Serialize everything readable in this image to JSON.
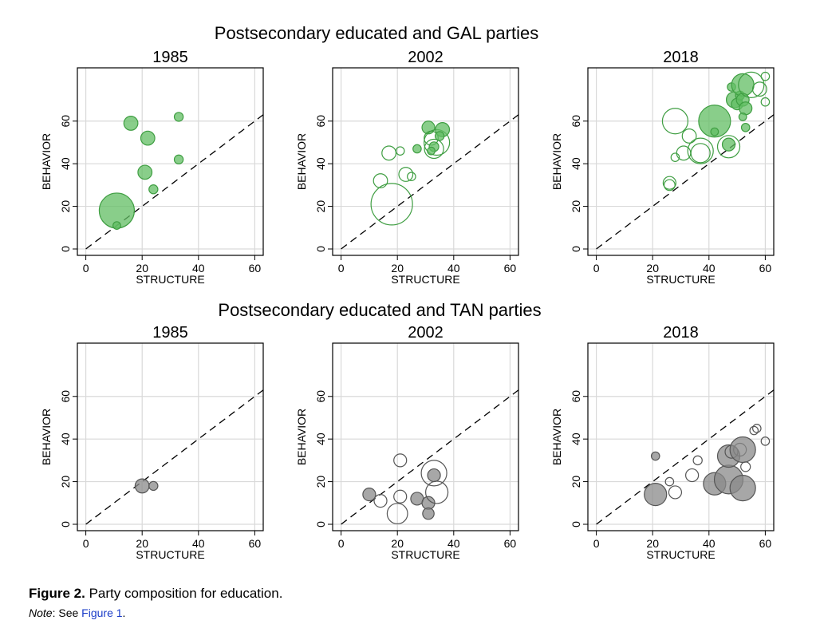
{
  "group_titles": [
    "Postsecondary educated and GAL parties",
    "Postsecondary educated and TAN parties"
  ],
  "colors": {
    "gal_fill": "#62bd63",
    "gal_stroke": "#3f9e42",
    "tan_fill": "#8a8a8a",
    "tan_stroke": "#555555",
    "grid": "#d9d9d9",
    "axis": "#000000",
    "link": "#1a3cc8"
  },
  "chart_data": [
    {
      "type": "scatter",
      "title": "1985",
      "xlabel": "STRUCTURE",
      "ylabel": "BEHAVIOR",
      "xlim": [
        -3,
        63
      ],
      "ylim": [
        -3,
        85
      ],
      "xticks": [
        "0",
        "20",
        "40",
        "60"
      ],
      "yticks": [
        "0",
        "20",
        "40",
        "60"
      ],
      "grid": true,
      "reference_line": "y = x (dashed)",
      "color": "gal",
      "points": [
        {
          "x": 11,
          "y": 18,
          "size": 5.5,
          "filled": true
        },
        {
          "x": 11,
          "y": 11,
          "size": 1.2,
          "filled": true
        },
        {
          "x": 16,
          "y": 59,
          "size": 2.2,
          "filled": true
        },
        {
          "x": 22,
          "y": 52,
          "size": 2.2,
          "filled": true
        },
        {
          "x": 21,
          "y": 36,
          "size": 2.2,
          "filled": true
        },
        {
          "x": 24,
          "y": 28,
          "size": 1.4,
          "filled": true
        },
        {
          "x": 33,
          "y": 62,
          "size": 1.4,
          "filled": true
        },
        {
          "x": 33,
          "y": 42,
          "size": 1.4,
          "filled": true
        }
      ]
    },
    {
      "type": "scatter",
      "title": "2002",
      "xlabel": "STRUCTURE",
      "ylabel": "BEHAVIOR",
      "xlim": [
        -3,
        63
      ],
      "ylim": [
        -3,
        85
      ],
      "xticks": [
        "0",
        "20",
        "40",
        "60"
      ],
      "yticks": [
        "0",
        "20",
        "40",
        "60"
      ],
      "grid": true,
      "reference_line": "y = x (dashed)",
      "color": "gal",
      "points": [
        {
          "x": 18,
          "y": 21,
          "size": 6.5,
          "filled": false
        },
        {
          "x": 17,
          "y": 45,
          "size": 2.2,
          "filled": false
        },
        {
          "x": 21,
          "y": 46,
          "size": 1.3,
          "filled": false
        },
        {
          "x": 14,
          "y": 32,
          "size": 2.2,
          "filled": false
        },
        {
          "x": 23,
          "y": 35,
          "size": 2.2,
          "filled": false
        },
        {
          "x": 25,
          "y": 34,
          "size": 1.3,
          "filled": false
        },
        {
          "x": 27,
          "y": 47,
          "size": 1.3,
          "filled": true
        },
        {
          "x": 31,
          "y": 57,
          "size": 2.0,
          "filled": true
        },
        {
          "x": 32,
          "y": 52,
          "size": 2.2,
          "filled": false
        },
        {
          "x": 33,
          "y": 47,
          "size": 3.0,
          "filled": false
        },
        {
          "x": 33,
          "y": 48,
          "size": 1.5,
          "filled": true
        },
        {
          "x": 34,
          "y": 50,
          "size": 4.0,
          "filled": false
        },
        {
          "x": 36,
          "y": 56,
          "size": 2.2,
          "filled": true
        },
        {
          "x": 35,
          "y": 53,
          "size": 1.4,
          "filled": true
        },
        {
          "x": 32,
          "y": 46,
          "size": 1.2,
          "filled": true
        }
      ]
    },
    {
      "type": "scatter",
      "title": "2018",
      "xlabel": "STRUCTURE",
      "ylabel": "BEHAVIOR",
      "xlim": [
        -3,
        63
      ],
      "ylim": [
        -3,
        85
      ],
      "xticks": [
        "0",
        "20",
        "40",
        "60"
      ],
      "yticks": [
        "0",
        "20",
        "40",
        "60"
      ],
      "grid": true,
      "reference_line": "y = x (dashed)",
      "color": "gal",
      "points": [
        {
          "x": 26,
          "y": 30,
          "size": 1.7,
          "filled": false
        },
        {
          "x": 26,
          "y": 31,
          "size": 2.0,
          "filled": false
        },
        {
          "x": 28,
          "y": 60,
          "size": 4.0,
          "filled": false
        },
        {
          "x": 28,
          "y": 43,
          "size": 1.3,
          "filled": false
        },
        {
          "x": 31,
          "y": 45,
          "size": 2.2,
          "filled": false
        },
        {
          "x": 33,
          "y": 53,
          "size": 2.2,
          "filled": false
        },
        {
          "x": 37,
          "y": 46,
          "size": 4.0,
          "filled": false
        },
        {
          "x": 37,
          "y": 45,
          "size": 3.0,
          "filled": false
        },
        {
          "x": 42,
          "y": 60,
          "size": 5.0,
          "filled": true
        },
        {
          "x": 42,
          "y": 55,
          "size": 1.2,
          "filled": true
        },
        {
          "x": 47,
          "y": 48,
          "size": 3.5,
          "filled": false
        },
        {
          "x": 47,
          "y": 49,
          "size": 2.0,
          "filled": true
        },
        {
          "x": 48,
          "y": 76,
          "size": 1.3,
          "filled": true
        },
        {
          "x": 49,
          "y": 70,
          "size": 2.5,
          "filled": true
        },
        {
          "x": 50,
          "y": 68,
          "size": 1.8,
          "filled": true
        },
        {
          "x": 51,
          "y": 72,
          "size": 1.4,
          "filled": true
        },
        {
          "x": 52,
          "y": 77,
          "size": 3.5,
          "filled": true
        },
        {
          "x": 52,
          "y": 70,
          "size": 2.0,
          "filled": true
        },
        {
          "x": 53,
          "y": 66,
          "size": 2.0,
          "filled": true
        },
        {
          "x": 52,
          "y": 62,
          "size": 1.2,
          "filled": true
        },
        {
          "x": 53,
          "y": 57,
          "size": 1.3,
          "filled": true
        },
        {
          "x": 55,
          "y": 77,
          "size": 4.0,
          "filled": false
        },
        {
          "x": 58,
          "y": 75,
          "size": 2.2,
          "filled": false
        },
        {
          "x": 60,
          "y": 81,
          "size": 1.3,
          "filled": false
        },
        {
          "x": 60,
          "y": 69,
          "size": 1.3,
          "filled": false
        }
      ]
    },
    {
      "type": "scatter",
      "title": "1985",
      "xlabel": "STRUCTURE",
      "ylabel": "BEHAVIOR",
      "xlim": [
        -3,
        63
      ],
      "ylim": [
        -3,
        85
      ],
      "xticks": [
        "0",
        "20",
        "40",
        "60"
      ],
      "yticks": [
        "0",
        "20",
        "40",
        "60"
      ],
      "grid": true,
      "reference_line": "y = x (dashed)",
      "color": "tan",
      "points": [
        {
          "x": 20,
          "y": 18,
          "size": 2.2,
          "filled": true
        },
        {
          "x": 24,
          "y": 18,
          "size": 1.4,
          "filled": true
        }
      ]
    },
    {
      "type": "scatter",
      "title": "2002",
      "xlabel": "STRUCTURE",
      "ylabel": "BEHAVIOR",
      "xlim": [
        -3,
        63
      ],
      "ylim": [
        -3,
        85
      ],
      "xticks": [
        "0",
        "20",
        "40",
        "60"
      ],
      "yticks": [
        "0",
        "20",
        "40",
        "60"
      ],
      "grid": true,
      "reference_line": "y = x (dashed)",
      "color": "tan",
      "points": [
        {
          "x": 10,
          "y": 14,
          "size": 2.0,
          "filled": true
        },
        {
          "x": 14,
          "y": 11,
          "size": 2.0,
          "filled": false
        },
        {
          "x": 21,
          "y": 30,
          "size": 2.0,
          "filled": false
        },
        {
          "x": 21,
          "y": 13,
          "size": 2.0,
          "filled": false
        },
        {
          "x": 20,
          "y": 5,
          "size": 3.2,
          "filled": false
        },
        {
          "x": 27,
          "y": 12,
          "size": 2.0,
          "filled": true
        },
        {
          "x": 31,
          "y": 10,
          "size": 2.0,
          "filled": true
        },
        {
          "x": 31,
          "y": 5,
          "size": 1.8,
          "filled": true
        },
        {
          "x": 33,
          "y": 24,
          "size": 4.0,
          "filled": false
        },
        {
          "x": 33,
          "y": 23,
          "size": 2.0,
          "filled": true
        },
        {
          "x": 34,
          "y": 15,
          "size": 3.5,
          "filled": false
        }
      ]
    },
    {
      "type": "scatter",
      "title": "2018",
      "xlabel": "STRUCTURE",
      "ylabel": "BEHAVIOR",
      "xlim": [
        -3,
        63
      ],
      "ylim": [
        -3,
        85
      ],
      "xticks": [
        "0",
        "20",
        "40",
        "60"
      ],
      "yticks": [
        "0",
        "20",
        "40",
        "60"
      ],
      "grid": true,
      "reference_line": "y = x (dashed)",
      "color": "tan",
      "points": [
        {
          "x": 21,
          "y": 32,
          "size": 1.3,
          "filled": true
        },
        {
          "x": 21,
          "y": 14,
          "size": 3.5,
          "filled": true
        },
        {
          "x": 26,
          "y": 20,
          "size": 1.3,
          "filled": false
        },
        {
          "x": 28,
          "y": 15,
          "size": 2.0,
          "filled": false
        },
        {
          "x": 34,
          "y": 23,
          "size": 2.0,
          "filled": false
        },
        {
          "x": 36,
          "y": 30,
          "size": 1.4,
          "filled": false
        },
        {
          "x": 42,
          "y": 19,
          "size": 3.5,
          "filled": true
        },
        {
          "x": 47,
          "y": 21,
          "size": 4.5,
          "filled": true
        },
        {
          "x": 47,
          "y": 32,
          "size": 3.5,
          "filled": true
        },
        {
          "x": 48,
          "y": 34,
          "size": 2.0,
          "filled": false
        },
        {
          "x": 51,
          "y": 35,
          "size": 2.0,
          "filled": false
        },
        {
          "x": 52,
          "y": 35,
          "size": 4.0,
          "filled": true
        },
        {
          "x": 52,
          "y": 17,
          "size": 4.0,
          "filled": true
        },
        {
          "x": 53,
          "y": 27,
          "size": 1.5,
          "filled": false
        },
        {
          "x": 56,
          "y": 44,
          "size": 1.3,
          "filled": false
        },
        {
          "x": 57,
          "y": 45,
          "size": 1.3,
          "filled": false
        },
        {
          "x": 60,
          "y": 39,
          "size": 1.3,
          "filled": false
        }
      ]
    }
  ],
  "caption": {
    "label": "Figure 2.",
    "text": " Party composition for education.",
    "note_label": "Note",
    "note_sep": ": See ",
    "note_link": "Figure 1",
    "note_end": "."
  }
}
